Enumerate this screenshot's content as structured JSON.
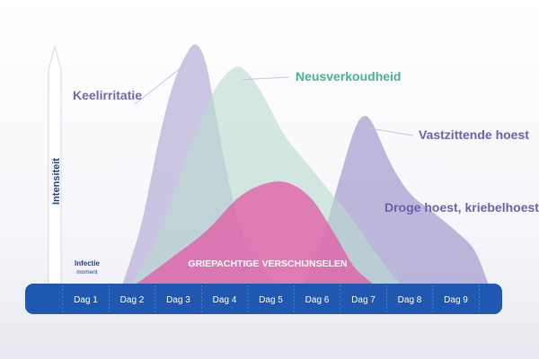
{
  "chart_data": {
    "type": "area",
    "title": "",
    "xlabel": "",
    "ylabel": "Intensiteit",
    "x_ticks": [
      "Dag 1",
      "Dag 2",
      "Dag 3",
      "Dag 4",
      "Dag 5",
      "Dag 6",
      "Dag 7",
      "Dag 8",
      "Dag 9"
    ],
    "xlim": [
      0,
      10
    ],
    "ylim": [
      0,
      100
    ],
    "origin_label": "Infectie",
    "origin_sublabel": "moment",
    "grid": false,
    "series": [
      {
        "name": "Keelirritatie",
        "color": "#b9b0d8",
        "x": [
          1.8,
          2.2,
          2.6,
          2.9,
          3.2,
          3.4,
          3.6,
          3.8,
          4.1,
          4.4,
          4.8,
          5.2
        ],
        "y": [
          0,
          25,
          62,
          84,
          97,
          100,
          92,
          72,
          42,
          20,
          6,
          0
        ]
      },
      {
        "name": "Neusverkoudheid",
        "color": "#b9dccf",
        "x": [
          2.0,
          2.6,
          3.2,
          3.7,
          4.1,
          4.4,
          4.8,
          5.3,
          5.8,
          6.3,
          6.8,
          7.3,
          7.8
        ],
        "y": [
          0,
          22,
          55,
          78,
          89,
          90,
          80,
          62,
          50,
          38,
          26,
          12,
          0
        ]
      },
      {
        "name": "Vastzittende hoest",
        "color": "#a69ccf",
        "x": [
          5.7,
          6.1,
          6.5,
          6.8,
          7.0,
          7.2,
          7.6,
          8.0,
          8.5,
          9.0,
          9.4,
          9.7
        ],
        "y": [
          0,
          18,
          45,
          64,
          70,
          67,
          50,
          38,
          30,
          22,
          14,
          0
        ]
      },
      {
        "name": "Droge hoest, kriebelhoest",
        "color": "#a69ccf",
        "x": [],
        "y": []
      },
      {
        "name": "GRIEPACHTIGE VERSCHIJNSELEN",
        "color": "#e25ea8",
        "x": [
          2.1,
          2.8,
          3.6,
          4.3,
          4.9,
          5.4,
          5.9,
          6.4,
          6.8,
          7.2
        ],
        "y": [
          0,
          10,
          22,
          36,
          42,
          42,
          35,
          20,
          7,
          0
        ]
      }
    ]
  }
}
